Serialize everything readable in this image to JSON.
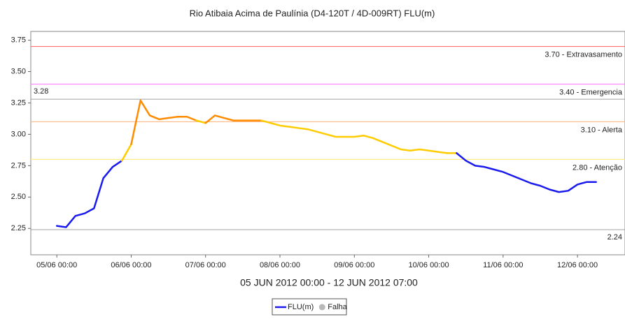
{
  "chart_data": {
    "type": "line",
    "title": "Rio Atibaia Acima de Paulínia (D4-120T / 4D-009RT) FLU(m)",
    "x_label": "05 JUN 2012 00:00 - 12 JUN 2012 07:00",
    "x": [
      "2012-06-05T00:00",
      "2012-06-05T03:00",
      "2012-06-05T06:00",
      "2012-06-05T09:00",
      "2012-06-05T12:00",
      "2012-06-05T15:00",
      "2012-06-05T18:00",
      "2012-06-05T21:00",
      "2012-06-06T00:00",
      "2012-06-06T03:00",
      "2012-06-06T06:00",
      "2012-06-06T09:00",
      "2012-06-06T12:00",
      "2012-06-06T15:00",
      "2012-06-06T18:00",
      "2012-06-06T21:00",
      "2012-06-07T00:00",
      "2012-06-07T03:00",
      "2012-06-07T06:00",
      "2012-06-07T09:00",
      "2012-06-07T12:00",
      "2012-06-07T15:00",
      "2012-06-07T18:00",
      "2012-06-07T21:00",
      "2012-06-08T00:00",
      "2012-06-08T03:00",
      "2012-06-08T06:00",
      "2012-06-08T09:00",
      "2012-06-08T12:00",
      "2012-06-08T15:00",
      "2012-06-08T18:00",
      "2012-06-08T21:00",
      "2012-06-09T00:00",
      "2012-06-09T03:00",
      "2012-06-09T06:00",
      "2012-06-09T09:00",
      "2012-06-09T12:00",
      "2012-06-09T15:00",
      "2012-06-09T18:00",
      "2012-06-09T21:00",
      "2012-06-10T00:00",
      "2012-06-10T03:00",
      "2012-06-10T06:00",
      "2012-06-10T09:00",
      "2012-06-10T12:00",
      "2012-06-10T15:00",
      "2012-06-10T18:00",
      "2012-06-10T21:00",
      "2012-06-11T00:00",
      "2012-06-11T03:00",
      "2012-06-11T06:00",
      "2012-06-11T09:00",
      "2012-06-11T12:00",
      "2012-06-11T15:00",
      "2012-06-11T18:00",
      "2012-06-11T21:00",
      "2012-06-12T00:00",
      "2012-06-12T03:00",
      "2012-06-12T06:00"
    ],
    "series": [
      {
        "name": "FLU(m)",
        "color": "#1a1aee",
        "values": [
          2.27,
          2.26,
          2.35,
          2.37,
          2.41,
          2.65,
          2.74,
          2.79,
          2.92,
          3.27,
          3.15,
          3.12,
          3.13,
          3.14,
          3.14,
          3.11,
          3.09,
          3.15,
          3.13,
          3.11,
          3.11,
          3.11,
          3.11,
          3.09,
          3.07,
          3.06,
          3.05,
          3.04,
          3.02,
          3.0,
          2.98,
          2.98,
          2.98,
          2.99,
          2.97,
          2.94,
          2.91,
          2.88,
          2.87,
          2.88,
          2.87,
          2.86,
          2.85,
          2.85,
          2.79,
          2.75,
          2.74,
          2.72,
          2.7,
          2.67,
          2.64,
          2.61,
          2.59,
          2.56,
          2.54,
          2.55,
          2.6,
          2.62,
          2.62
        ]
      }
    ],
    "legend_extra": [
      {
        "name": "Falha",
        "color": "#b8b8b8"
      }
    ],
    "thresholds": [
      {
        "value": 3.7,
        "label": "3.70 - Extravasamento",
        "color": "#ff7070"
      },
      {
        "value": 3.4,
        "label": "3.40 - Emergencia",
        "color": "#ff88ff"
      },
      {
        "value": 3.1,
        "label": "3.10 - Alerta",
        "color": "#ffb888",
        "curve_color": "#ff8c00"
      },
      {
        "value": 2.8,
        "label": "2.80 - Atenção",
        "color": "#ffee88",
        "curve_color": "#ffcc00"
      }
    ],
    "reference_lines": [
      {
        "value": 3.28,
        "color": "#a0a0a0",
        "side": "left"
      },
      {
        "value": 2.24,
        "color": "#a0a0a0",
        "side": "right"
      }
    ],
    "xlim": [
      "2012-06-04T15:36",
      "2012-06-12T15:20"
    ],
    "xticks": [
      {
        "value": "2012-06-05T00:00",
        "label": "05/06 00:00"
      },
      {
        "value": "2012-06-06T00:00",
        "label": "06/06 00:00"
      },
      {
        "value": "2012-06-07T00:00",
        "label": "07/06 00:00"
      },
      {
        "value": "2012-06-08T00:00",
        "label": "08/06 00:00"
      },
      {
        "value": "2012-06-09T00:00",
        "label": "09/06 00:00"
      },
      {
        "value": "2012-06-10T00:00",
        "label": "10/06 00:00"
      },
      {
        "value": "2012-06-11T00:00",
        "label": "11/06 00:00"
      },
      {
        "value": "2012-06-12T00:00",
        "label": "12/06 00:00"
      }
    ],
    "ylim": [
      2.04,
      3.82
    ],
    "yticks": [
      2.25,
      {
        "value": 2.5,
        "label": "2.50"
      },
      2.75,
      {
        "value": 3.0,
        "label": "3.00"
      },
      3.25,
      {
        "value": 3.5,
        "label": "3.50"
      },
      3.75
    ]
  }
}
